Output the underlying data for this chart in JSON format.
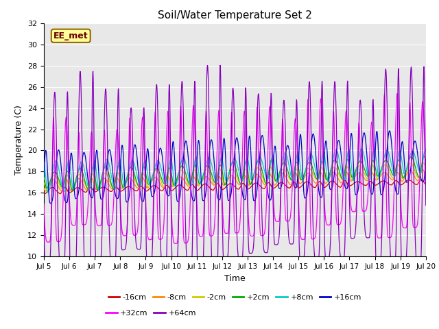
{
  "title": "Soil/Water Temperature Set 2",
  "xlabel": "Time",
  "ylabel": "Temperature (C)",
  "ylim": [
    10,
    32
  ],
  "yticks": [
    10,
    12,
    14,
    16,
    18,
    20,
    22,
    24,
    26,
    28,
    30,
    32
  ],
  "annotation": "EE_met",
  "series_order": [
    "-16cm",
    "-8cm",
    "-2cm",
    "+2cm",
    "+8cm",
    "+16cm",
    "+32cm",
    "+64cm"
  ],
  "colors": {
    "-16cm": "#cc0000",
    "-8cm": "#ff8800",
    "-2cm": "#cccc00",
    "+2cm": "#00aa00",
    "+8cm": "#00cccc",
    "+16cm": "#0000cc",
    "+32cm": "#ff00ff",
    "+64cm": "#8800bb"
  },
  "legend_rows": [
    [
      "-16cm",
      "-8cm",
      "-2cm",
      "+2cm",
      "+8cm",
      "+16cm"
    ],
    [
      "+32cm",
      "+64cm"
    ]
  ],
  "n_points": 1440,
  "days": 15,
  "start_day": 5,
  "params": {
    "-16cm": {
      "base": 16.2,
      "amp": 0.25,
      "trend": 0.055,
      "phase_lag": 0.0
    },
    "-8cm": {
      "base": 16.7,
      "amp": 0.45,
      "trend": 0.065,
      "phase_lag": 0.05
    },
    "-2cm": {
      "base": 17.0,
      "amp": 0.65,
      "trend": 0.075,
      "phase_lag": 0.08
    },
    "+2cm": {
      "base": 17.2,
      "amp": 0.9,
      "trend": 0.085,
      "phase_lag": 0.1
    },
    "+8cm": {
      "base": 17.5,
      "amp": 1.2,
      "trend": 0.095,
      "phase_lag": 0.15
    },
    "+16cm": {
      "base": 17.5,
      "amp": 2.5,
      "trend": 0.1,
      "phase_lag": 0.25
    },
    "+32cm": {
      "base": 17.2,
      "amp": 5.5,
      "trend": 0.1,
      "phase_lag": 0.55
    },
    "+64cm": {
      "base": 17.0,
      "amp": 8.5,
      "trend": 0.1,
      "phase_lag": 1.1
    }
  }
}
